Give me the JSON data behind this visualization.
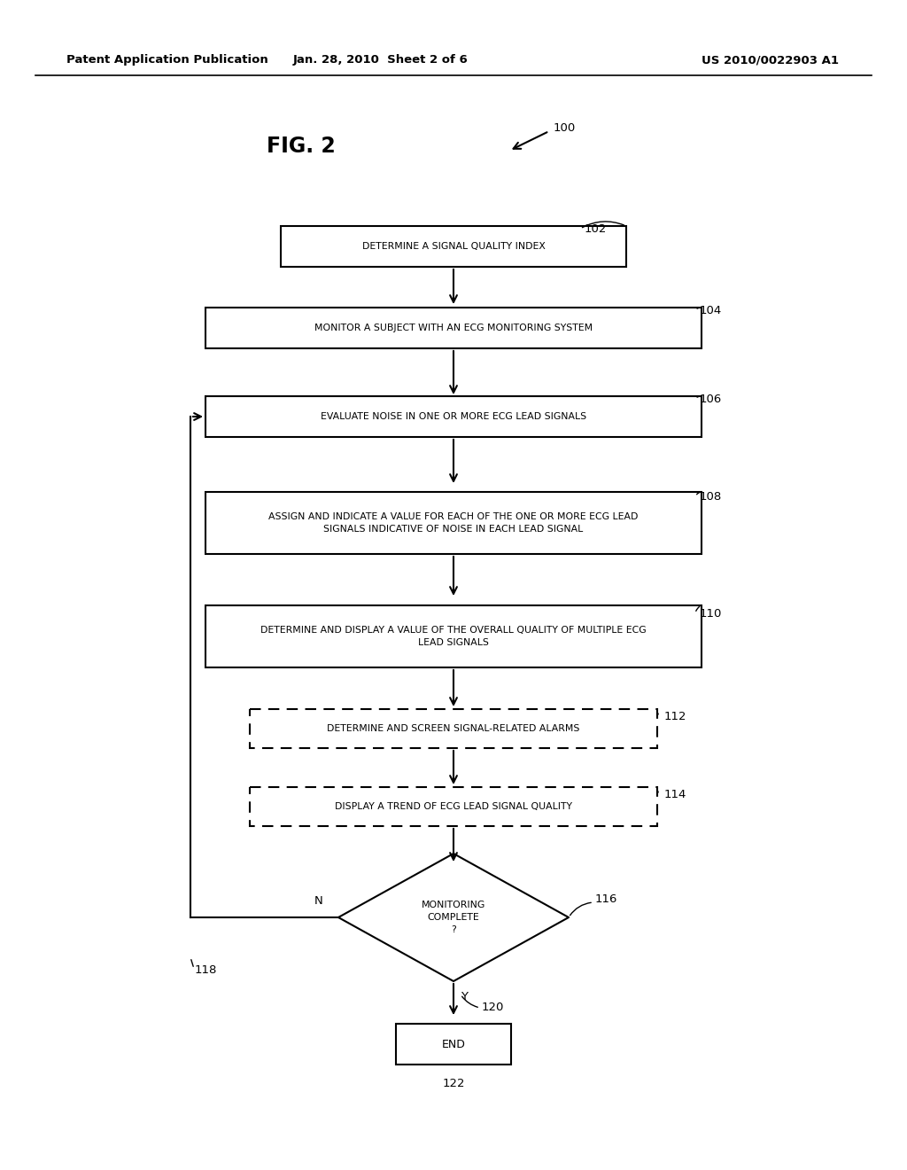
{
  "bg_color": "#ffffff",
  "header_left": "Patent Application Publication",
  "header_center": "Jan. 28, 2010  Sheet 2 of 6",
  "header_right": "US 2010/0022903 A1",
  "fig_label": "FIG. 2",
  "fig_label_ref": "100"
}
